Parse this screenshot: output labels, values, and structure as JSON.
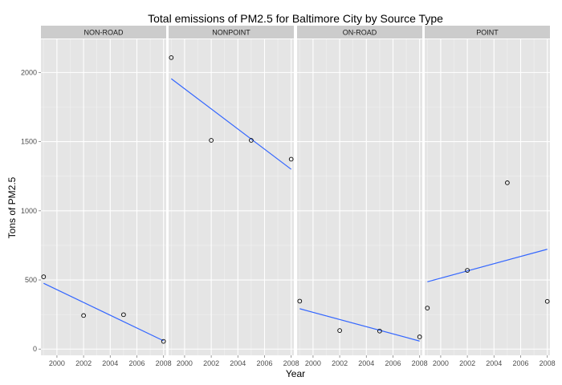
{
  "chart_data": {
    "type": "scatter",
    "title": "Total emissions of PM2.5 for Baltimore City by Source Type",
    "xlabel": "Year",
    "ylabel": "Tons of PM2.5",
    "xlim": [
      1998.8,
      2008.2
    ],
    "ylim": [
      -45,
      2240
    ],
    "x_ticks": [
      2000,
      2002,
      2004,
      2006,
      2008
    ],
    "y_ticks": [
      0,
      500,
      1000,
      1500,
      2000
    ],
    "x_tick_labels": [
      "2000",
      "2002",
      "2004",
      "2006",
      "2008"
    ],
    "y_tick_labels": [
      "0",
      "500",
      "1000",
      "1500",
      "2000"
    ],
    "grid": true,
    "legend": "none",
    "colors": {
      "panel_bg": "#e5e5e5",
      "grid_major": "#ffffff",
      "grid_minor": "#f2f2f2",
      "strip_bg": "#cccccc",
      "point_stroke": "#000000",
      "fit_line": "#3366ff"
    },
    "panels": [
      {
        "name": "NON-ROAD",
        "x": [
          1999,
          2002,
          2005,
          2008
        ],
        "y": [
          522.9,
          242.7,
          248.9,
          55.8
        ],
        "fit": {
          "x": [
            1999,
            2008
          ],
          "y": [
            476,
            60
          ]
        }
      },
      {
        "name": "NONPOINT",
        "x": [
          1999,
          2002,
          2005,
          2008
        ],
        "y": [
          2107.6,
          1509.5,
          1509.5,
          1373.2
        ],
        "fit": {
          "x": [
            1999,
            2008
          ],
          "y": [
            1955,
            1300
          ]
        }
      },
      {
        "name": "ON-ROAD",
        "x": [
          1999,
          2002,
          2005,
          2008
        ],
        "y": [
          346.8,
          134.3,
          130.4,
          88.3
        ],
        "fit": {
          "x": [
            1999,
            2008
          ],
          "y": [
            292,
            58
          ]
        }
      },
      {
        "name": "POINT",
        "x": [
          1999,
          2002,
          2005,
          2008
        ],
        "y": [
          296.8,
          569.3,
          1202.5,
          344.98
        ],
        "fit": {
          "x": [
            1999,
            2008
          ],
          "y": [
            487,
            722
          ]
        }
      }
    ]
  }
}
